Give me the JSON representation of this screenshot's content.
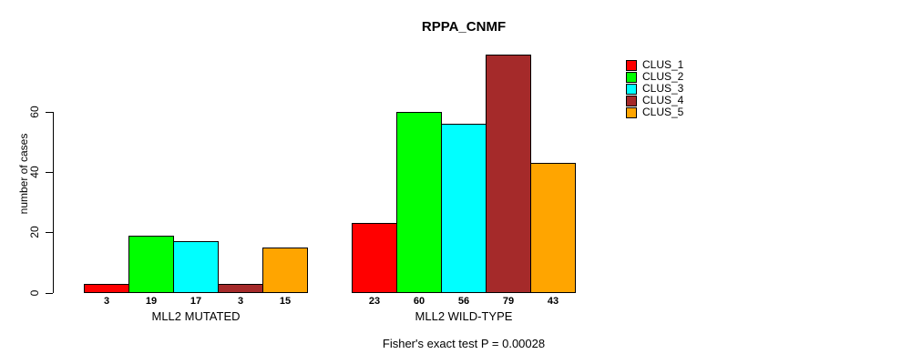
{
  "chart_data": {
    "type": "bar",
    "title": "RPPA_CNMF",
    "ylabel": "number of cases",
    "xlabel": "",
    "categories": [
      "MLL2 MUTATED",
      "MLL2 WILD-TYPE"
    ],
    "series": [
      {
        "name": "CLUS_1",
        "color": "#ff0000",
        "values": [
          3,
          23
        ]
      },
      {
        "name": "CLUS_2",
        "color": "#00ff00",
        "values": [
          19,
          60
        ]
      },
      {
        "name": "CLUS_3",
        "color": "#00ffff",
        "values": [
          17,
          56
        ]
      },
      {
        "name": "CLUS_4",
        "color": "#a52a2a",
        "values": [
          3,
          79
        ]
      },
      {
        "name": "CLUS_5",
        "color": "#ffa500",
        "values": [
          15,
          43
        ]
      }
    ],
    "yticks": [
      0,
      20,
      40,
      60
    ],
    "ylim": [
      0,
      79
    ],
    "bar_value_labels": true,
    "grid": false,
    "legend_position": "right-outside",
    "annotation": "Fisher's exact test P = 0.00028"
  }
}
